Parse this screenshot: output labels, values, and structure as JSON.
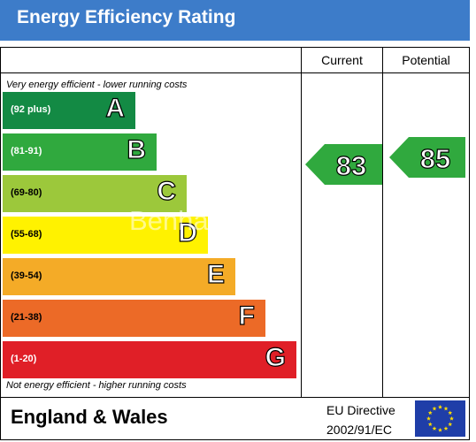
{
  "title": "Energy Efficiency Rating",
  "columns": {
    "current": "Current",
    "potential": "Potential"
  },
  "notes": {
    "top": "Very energy efficient - lower running costs",
    "bottom": "Not energy efficient - higher running costs"
  },
  "chart_data": {
    "type": "bar",
    "categories": [
      "A",
      "B",
      "C",
      "D",
      "E",
      "F",
      "G"
    ],
    "ranges": [
      "(92 plus)",
      "(81-91)",
      "(69-80)",
      "(55-68)",
      "(39-54)",
      "(21-38)",
      "(1-20)"
    ],
    "band_colors": [
      "#138a44",
      "#30a93e",
      "#9cc83b",
      "#fff200",
      "#f4ab27",
      "#ec6a27",
      "#e01f27"
    ],
    "range_text_colors": [
      "#ffffff",
      "#ffffff",
      "#000000",
      "#000000",
      "#000000",
      "#000000",
      "#ffffff"
    ],
    "current_rating": 83,
    "potential_rating": 85,
    "rating_color": "#30a93e"
  },
  "footer": {
    "region": "England & Wales",
    "directive_line1": "EU Directive",
    "directive_line2": "2002/91/EC",
    "flag_color": "#1f3ea8",
    "star_color": "#ffdd00"
  },
  "watermark": "Benham"
}
